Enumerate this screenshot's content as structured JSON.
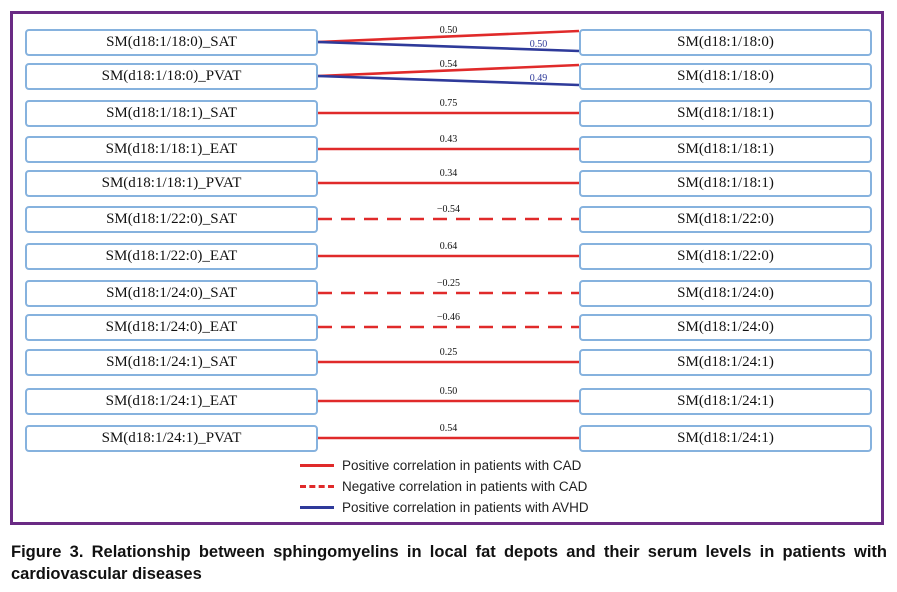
{
  "rows": [
    {
      "left": "SM(d18:1/18:0)_SAT",
      "right": "SM(d18:1/18:0)",
      "type": "pair",
      "red_value": "0.50",
      "blue_value": "0.50"
    },
    {
      "left": "SM(d18:1/18:0)_PVAT",
      "right": "SM(d18:1/18:0)",
      "type": "pair",
      "red_value": "0.54",
      "blue_value": "0.49"
    },
    {
      "left": "SM(d18:1/18:1)_SAT",
      "right": "SM(d18:1/18:1)",
      "type": "positive",
      "value": "0.75"
    },
    {
      "left": "SM(d18:1/18:1)_EAT",
      "right": "SM(d18:1/18:1)",
      "type": "positive",
      "value": "0.43"
    },
    {
      "left": "SM(d18:1/18:1)_PVAT",
      "right": "SM(d18:1/18:1)",
      "type": "positive",
      "value": "0.34"
    },
    {
      "left": "SM(d18:1/22:0)_SAT",
      "right": "SM(d18:1/22:0)",
      "type": "negative",
      "value": "−0.54"
    },
    {
      "left": "SM(d18:1/22:0)_EAT",
      "right": "SM(d18:1/22:0)",
      "type": "positive",
      "value": "0.64"
    },
    {
      "left": "SM(d18:1/24:0)_SAT",
      "right": "SM(d18:1/24:0)",
      "type": "negative",
      "value": "−0.25"
    },
    {
      "left": "SM(d18:1/24:0)_EAT",
      "right": "SM(d18:1/24:0)",
      "type": "negative",
      "value": "−0.46"
    },
    {
      "left": "SM(d18:1/24:1)_SAT",
      "right": "SM(d18:1/24:1)",
      "type": "positive",
      "value": "0.25"
    },
    {
      "left": "SM(d18:1/24:1)_EAT",
      "right": "SM(d18:1/24:1)",
      "type": "positive",
      "value": "0.50"
    },
    {
      "left": "SM(d18:1/24:1)_PVAT",
      "right": "SM(d18:1/24:1)",
      "type": "positive",
      "value": "0.54"
    }
  ],
  "legend": [
    {
      "label": "Positive correlation in patients with CAD",
      "style": "solid",
      "color": "#e02a2a"
    },
    {
      "label": "Negative correlation in patients with CAD",
      "style": "dashed",
      "color": "#e02a2a"
    },
    {
      "label": "Positive correlation in patients with AVHD",
      "style": "solid",
      "color": "#2e3a9a"
    }
  ],
  "caption": "Figure 3. Relationship between sphingomyelins in local fat depots and their serum levels in patients with cardiovascular diseases",
  "colors": {
    "positive_cad": "#e02a2a",
    "avhd": "#2e3a9a",
    "box_border": "#86b2de",
    "frame": "#6a2a84"
  }
}
